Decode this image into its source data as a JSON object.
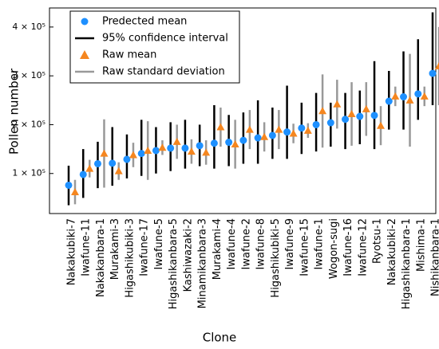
{
  "chart_data": {
    "type": "errorbar",
    "x_label": "Clone",
    "y_label": "Pollen number",
    "categories": [
      "Nakakubiki-7",
      "Iwafune-11",
      "Nakakanbara-1",
      "Murakami-3",
      "Higashikubiki-3",
      "Iwafune-17",
      "Iwafune-5",
      "Higashikanbara-5",
      "Kashiwazaki-2",
      "Minamikanbara-3",
      "Murakami-4",
      "Iwafune-4",
      "Iwafune-2",
      "Iwafune-8",
      "Higashikubiki-5",
      "Iwafune-9",
      "Iwafune-15",
      "Iwafune-1",
      "Wogon-sugi",
      "Iwafune-16",
      "Iwafune-12",
      "Ryotsu-1",
      "Nakakubiki-2",
      "Higashikanbara-1",
      "Mishima-1",
      "Nishikanbara-1"
    ],
    "series": [
      {
        "name": "Predected mean",
        "color": "#1e90ff",
        "values": [
          76000,
          98000,
          120000,
          121000,
          129000,
          141000,
          147000,
          152000,
          152000,
          157000,
          162000,
          164000,
          168000,
          173000,
          178000,
          185000,
          193000,
          200000,
          204000,
          211000,
          217000,
          219000,
          248000,
          257000,
          263000,
          305000
        ]
      },
      {
        "name": "95% confidence interval",
        "color": "#000000",
        "lower": [
          35000,
          50000,
          70000,
          75000,
          90000,
          95000,
          100000,
          105000,
          110000,
          115000,
          110000,
          115000,
          120000,
          120000,
          130000,
          130000,
          140000,
          145000,
          155000,
          150000,
          160000,
          150000,
          190000,
          190000,
          210000,
          240000
        ],
        "upper": [
          116000,
          150000,
          165000,
          195000,
          180000,
          210000,
          195000,
          205000,
          210000,
          200000,
          240000,
          220000,
          225000,
          250000,
          235000,
          280000,
          245000,
          265000,
          245000,
          265000,
          270000,
          330000,
          310000,
          350000,
          375000,
          430000
        ]
      },
      {
        "name": "Raw mean",
        "color": "#f5861f",
        "values": [
          62000,
          110000,
          141000,
          105000,
          138000,
          147000,
          153000,
          165000,
          145000,
          143000,
          195000,
          160000,
          190000,
          175000,
          190000,
          182000,
          188000,
          228000,
          242000,
          222000,
          232000,
          198000,
          258000,
          250000,
          258000,
          320000
        ]
      },
      {
        "name": "Raw standard deviation",
        "color": "#999999",
        "values": [
          25000,
          18000,
          70000,
          18000,
          25000,
          60000,
          15000,
          35000,
          25000,
          25000,
          40000,
          50000,
          40000,
          30000,
          40000,
          20000,
          15000,
          75000,
          50000,
          65000,
          55000,
          40000,
          20000,
          95000,
          20000,
          80000
        ]
      }
    ],
    "ylim": [
      18000,
      439000
    ],
    "yticks": [
      {
        "value": 100000,
        "label": "1 × 10⁵"
      },
      {
        "value": 200000,
        "label": "2 × 10⁵"
      },
      {
        "value": 300000,
        "label": "3 × 10⁵"
      },
      {
        "value": 400000,
        "label": "4 × 10⁵"
      }
    ],
    "legend": "upper left"
  }
}
